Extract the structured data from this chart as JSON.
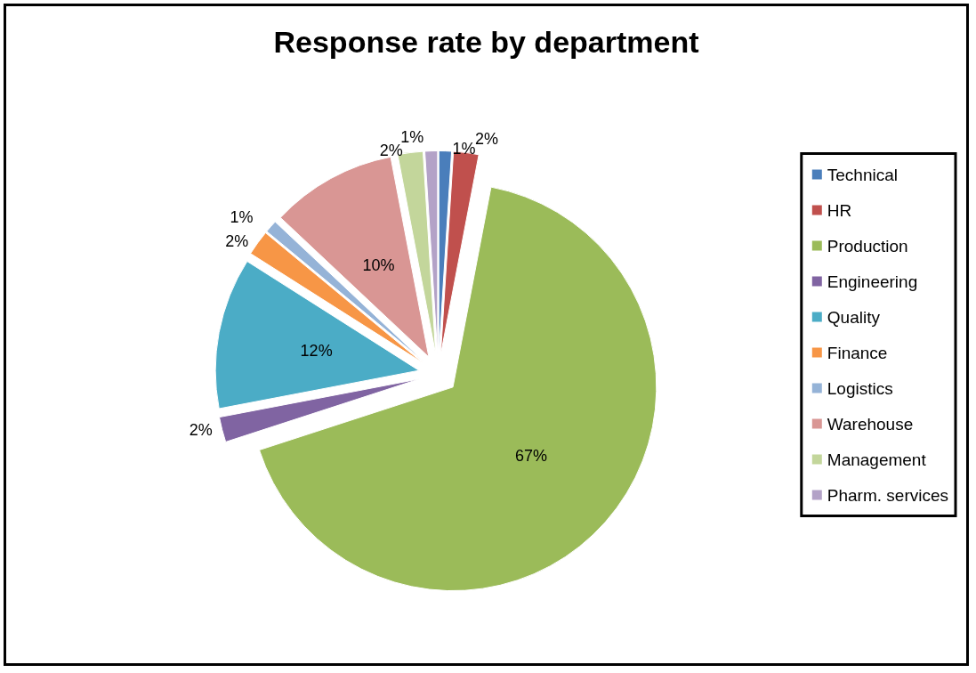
{
  "chart_data": {
    "type": "pie",
    "title": "Response rate by department",
    "categories": [
      "Technical",
      "HR",
      "Production",
      "Engineering",
      "Quality",
      "Finance",
      "Logistics",
      "Warehouse",
      "Management",
      "Pharm. services"
    ],
    "values": [
      1,
      2,
      67,
      2,
      12,
      2,
      1,
      10,
      2,
      1
    ],
    "value_labels": [
      "1%",
      "2%",
      "67%",
      "2%",
      "12%",
      "2%",
      "1%",
      "10%",
      "2%",
      "1%"
    ],
    "colors": [
      "#4a7ebb",
      "#c0504d",
      "#9bbb59",
      "#8064a2",
      "#4bacc6",
      "#f79646",
      "#95b3d7",
      "#d99694",
      "#c3d69b",
      "#b3a2c7"
    ],
    "legend": "right"
  }
}
